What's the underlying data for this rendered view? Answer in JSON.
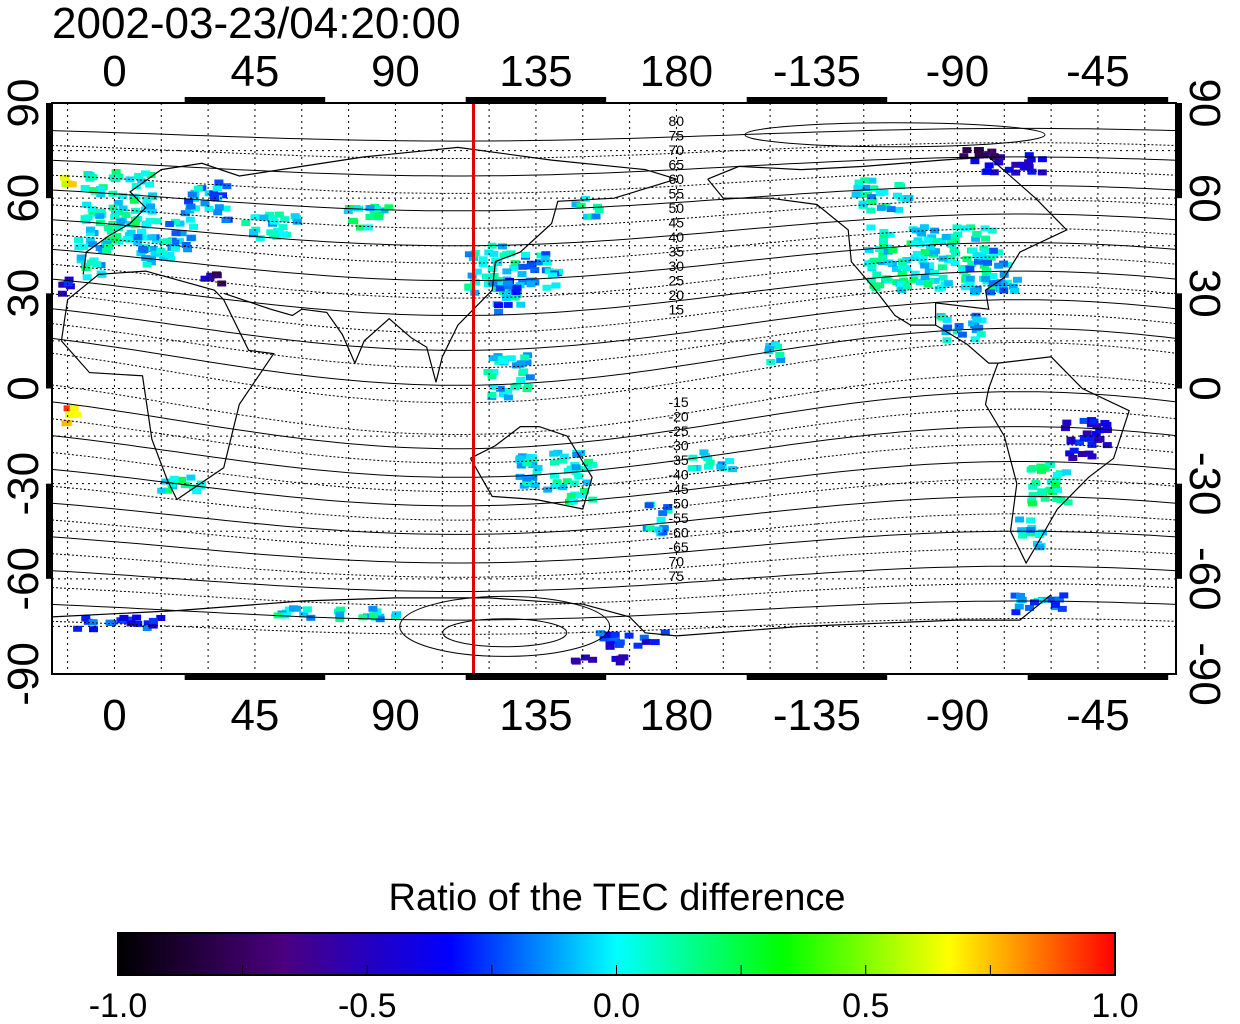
{
  "title": "2002-03-23/04:20:00",
  "axes": {
    "lon_ticks": [
      "0",
      "45",
      "90",
      "135",
      "180",
      "-135",
      "-90",
      "-45"
    ],
    "lat_ticks_left": [
      "90",
      "60",
      "30",
      "0",
      "-30",
      "-60",
      "-90"
    ],
    "lat_ticks_right": [
      "90",
      "60",
      "30",
      "0",
      "-30",
      "-60",
      "-90"
    ],
    "lon_range": [
      -20,
      340
    ],
    "lat_range": [
      -90,
      90
    ]
  },
  "marker_line": {
    "longitude": 115,
    "color": "#e00000"
  },
  "contour_labels_north": [
    "80",
    "75",
    "70",
    "65",
    "60",
    "55",
    "50",
    "45",
    "40",
    "35",
    "30",
    "25",
    "20",
    "15"
  ],
  "contour_labels_south": [
    "-15",
    "-20",
    "-25",
    "-30",
    "-35",
    "-40",
    "-45",
    "-50",
    "-55",
    "-60",
    "-65",
    "70",
    "75"
  ],
  "colorbar": {
    "title": "Ratio of the TEC difference",
    "tick_labels": [
      "-1.0",
      "-0.5",
      "0.0",
      "0.5",
      "1.0"
    ],
    "range": [
      -1.0,
      1.0
    ],
    "colors": [
      "#000000",
      "#4a0080",
      "#0000ff",
      "#00ffff",
      "#00ff00",
      "#ffff00",
      "#ff0000"
    ]
  },
  "data_patches": [
    {
      "lon": 0,
      "lat": 58,
      "w": 22,
      "h": 24,
      "v": 0.05
    },
    {
      "lon": 15,
      "lat": 47,
      "w": 18,
      "h": 14,
      "v": -0.05
    },
    {
      "lon": -8,
      "lat": 42,
      "w": 10,
      "h": 12,
      "v": 0.0
    },
    {
      "lon": 28,
      "lat": 60,
      "w": 14,
      "h": 12,
      "v": -0.1
    },
    {
      "lon": -15,
      "lat": 67,
      "w": 6,
      "h": 4,
      "v": 0.7
    },
    {
      "lon": -18,
      "lat": 33,
      "w": 6,
      "h": 5,
      "v": -0.4
    },
    {
      "lon": 30,
      "lat": 35,
      "w": 6,
      "h": 4,
      "v": -0.6
    },
    {
      "lon": 120,
      "lat": 38,
      "w": 16,
      "h": 18,
      "v": 0.0
    },
    {
      "lon": 135,
      "lat": 38,
      "w": 12,
      "h": 12,
      "v": -0.1
    },
    {
      "lon": 125,
      "lat": 30,
      "w": 8,
      "h": 10,
      "v": -0.2
    },
    {
      "lon": 150,
      "lat": 58,
      "w": 8,
      "h": 6,
      "v": 0.0
    },
    {
      "lon": 125,
      "lat": 5,
      "w": 14,
      "h": 14,
      "v": 0.0
    },
    {
      "lon": 140,
      "lat": -25,
      "w": 24,
      "h": 12,
      "v": 0.0
    },
    {
      "lon": 148,
      "lat": -32,
      "w": 8,
      "h": 6,
      "v": 0.1
    },
    {
      "lon": 172,
      "lat": -40,
      "w": 8,
      "h": 10,
      "v": -0.05
    },
    {
      "lon": -100,
      "lat": 42,
      "w": 40,
      "h": 20,
      "v": 0.05
    },
    {
      "lon": -80,
      "lat": 38,
      "w": 16,
      "h": 14,
      "v": -0.1
    },
    {
      "lon": -115,
      "lat": 62,
      "w": 18,
      "h": 10,
      "v": 0.0
    },
    {
      "lon": -75,
      "lat": 72,
      "w": 22,
      "h": 6,
      "v": -0.4
    },
    {
      "lon": -85,
      "lat": 75,
      "w": 12,
      "h": 4,
      "v": -0.8
    },
    {
      "lon": -90,
      "lat": 20,
      "w": 14,
      "h": 8,
      "v": -0.05
    },
    {
      "lon": -50,
      "lat": -15,
      "w": 14,
      "h": 12,
      "v": -0.4
    },
    {
      "lon": -62,
      "lat": -30,
      "w": 12,
      "h": 14,
      "v": 0.1
    },
    {
      "lon": -68,
      "lat": -45,
      "w": 8,
      "h": 10,
      "v": 0.0
    },
    {
      "lon": -65,
      "lat": -67,
      "w": 16,
      "h": 6,
      "v": -0.15
    },
    {
      "lon": 20,
      "lat": -30,
      "w": 14,
      "h": 6,
      "v": 0.05
    },
    {
      "lon": -15,
      "lat": -8,
      "w": 4,
      "h": 6,
      "v": 0.8
    },
    {
      "lon": 0,
      "lat": -73,
      "w": 30,
      "h": 4,
      "v": -0.3
    },
    {
      "lon": 70,
      "lat": -70,
      "w": 40,
      "h": 4,
      "v": 0.0
    },
    {
      "lon": 165,
      "lat": -78,
      "w": 22,
      "h": 5,
      "v": -0.3
    },
    {
      "lon": 155,
      "lat": -85,
      "w": 18,
      "h": 3,
      "v": -0.5
    },
    {
      "lon": -150,
      "lat": 12,
      "w": 8,
      "h": 6,
      "v": 0.0
    },
    {
      "lon": -170,
      "lat": -22,
      "w": 14,
      "h": 6,
      "v": 0.0
    },
    {
      "lon": 50,
      "lat": 52,
      "w": 20,
      "h": 8,
      "v": 0.0
    },
    {
      "lon": 80,
      "lat": 55,
      "w": 14,
      "h": 8,
      "v": 0.05
    }
  ]
}
